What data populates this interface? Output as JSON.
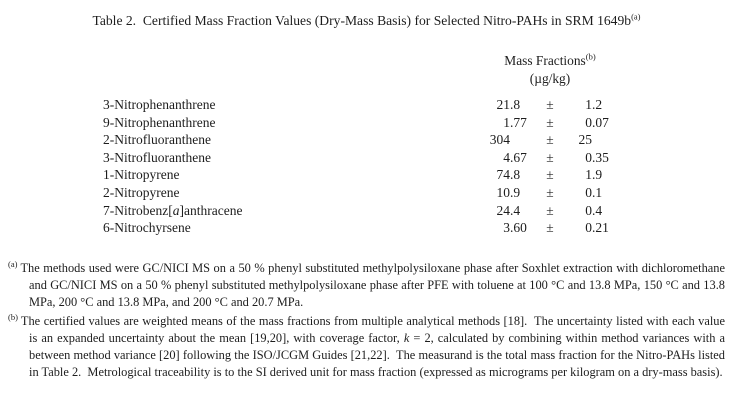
{
  "title": {
    "text": "Table 2.  Certified Mass Fraction Values (Dry-Mass Basis) for Selected Nitro-PAHs in SRM 1649b",
    "superscript": "(a)"
  },
  "table": {
    "header": {
      "label": "Mass Fractions",
      "superscript": "(b)",
      "unit": "(µg/kg)"
    },
    "plus_minus": "±",
    "rows": [
      {
        "name": "3-Nitrophenanthrene",
        "value": "21.8",
        "uncertainty": "1.2"
      },
      {
        "name": "9-Nitrophenanthrene",
        "value": "1.77",
        "uncertainty": "0.07"
      },
      {
        "name": "2-Nitrofluoranthene",
        "value": "304",
        "uncertainty": "25"
      },
      {
        "name": "3-Nitrofluoranthene",
        "value": "4.67",
        "uncertainty": "0.35"
      },
      {
        "name": "1-Nitropyrene",
        "value": "74.8",
        "uncertainty": "1.9"
      },
      {
        "name": "2-Nitropyrene",
        "value": "10.9",
        "uncertainty": "0.1"
      },
      {
        "name": "7-Nitrobenz[a]anthracene",
        "value": "24.4",
        "uncertainty": "0.4"
      },
      {
        "name": "6-Nitrochyrsene",
        "value": "3.60",
        "uncertainty": "0.21"
      }
    ]
  },
  "footnotes": [
    {
      "marker": "(a)",
      "text": "The methods used were GC/NICI MS on a 50 % phenyl substituted methylpolysiloxane phase after Soxhlet extraction with dichloromethane and GC/NICI MS on a 50 % phenyl substituted methylpolysiloxane phase after PFE with toluene at 100 °C and 13.8 MPa, 150 °C and 13.8 MPa, 200 °C and 13.8 MPa, and 200 °C and 20.7 MPa."
    },
    {
      "marker": "(b)",
      "text": "The certified values are weighted means of the mass fractions from multiple analytical methods [18].  The uncertainty listed with each value is an expanded uncertainty about the mean [19,20], with coverage factor, k = 2, calculated by combining within method variances with a between method variance [20] following the ISO/JCGM Guides [21,22].  The measurand is the total mass fraction for the Nitro-PAHs listed in Table 2.  Metrological traceability is to the SI derived unit for mass fraction (expressed as micrograms per kilogram on a dry-mass basis)."
    }
  ],
  "colors": {
    "text": "#1d1d1d",
    "background": "#ffffff"
  }
}
